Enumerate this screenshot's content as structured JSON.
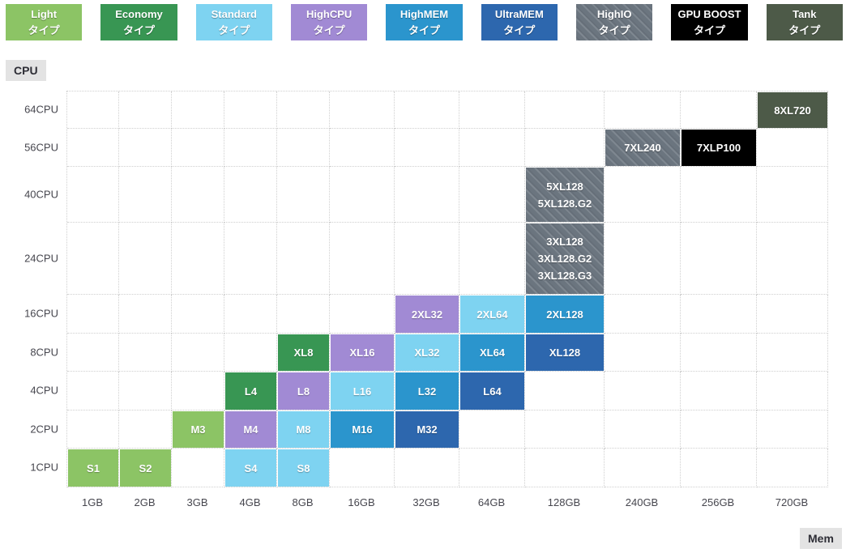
{
  "legend": {
    "items": [
      {
        "name": "Light",
        "sublabel": "タイプ",
        "color": "#8cc465",
        "striped": false
      },
      {
        "name": "Economy",
        "sublabel": "タイプ",
        "color": "#389653",
        "striped": false
      },
      {
        "name": "Standard",
        "sublabel": "タイプ",
        "color": "#7ed3f1",
        "striped": false
      },
      {
        "name": "HighCPU",
        "sublabel": "タイプ",
        "color": "#a18ad4",
        "striped": false
      },
      {
        "name": "HighMEM",
        "sublabel": "タイプ",
        "color": "#2b95cd",
        "striped": false
      },
      {
        "name": "UltraMEM",
        "sublabel": "タイプ",
        "color": "#2d67ae",
        "striped": false
      },
      {
        "name": "HighIO",
        "sublabel": "タイプ",
        "color": "#6b757f",
        "striped": true
      },
      {
        "name": "GPU BOOST",
        "sublabel": "タイプ",
        "color": "#000000",
        "striped": false
      },
      {
        "name": "Tank",
        "sublabel": "タイプ",
        "color": "#4d5a48",
        "striped": false
      }
    ]
  },
  "axes": {
    "y_badge": "CPU",
    "x_badge": "Mem"
  },
  "chart_data": {
    "type": "heatmap",
    "x_label": "Mem",
    "y_label": "CPU",
    "x_categories": [
      "1GB",
      "2GB",
      "3GB",
      "4GB",
      "8GB",
      "16GB",
      "32GB",
      "64GB",
      "128GB",
      "240GB",
      "256GB",
      "720GB"
    ],
    "y_categories": [
      "64CPU",
      "56CPU",
      "40CPU",
      "24CPU",
      "16CPU",
      "8CPU",
      "4CPU",
      "2CPU",
      "1CPU"
    ],
    "cells": [
      {
        "y": "1CPU",
        "x": "1GB",
        "labels": [
          "S1"
        ],
        "type": "Light"
      },
      {
        "y": "1CPU",
        "x": "2GB",
        "labels": [
          "S2"
        ],
        "type": "Light"
      },
      {
        "y": "1CPU",
        "x": "4GB",
        "labels": [
          "S4"
        ],
        "type": "Standard"
      },
      {
        "y": "1CPU",
        "x": "8GB",
        "labels": [
          "S8"
        ],
        "type": "Standard"
      },
      {
        "y": "2CPU",
        "x": "3GB",
        "labels": [
          "M3"
        ],
        "type": "Light"
      },
      {
        "y": "2CPU",
        "x": "4GB",
        "labels": [
          "M4"
        ],
        "type": "HighCPU"
      },
      {
        "y": "2CPU",
        "x": "8GB",
        "labels": [
          "M8"
        ],
        "type": "Standard"
      },
      {
        "y": "2CPU",
        "x": "16GB",
        "labels": [
          "M16"
        ],
        "type": "HighMEM"
      },
      {
        "y": "2CPU",
        "x": "32GB",
        "labels": [
          "M32"
        ],
        "type": "UltraMEM"
      },
      {
        "y": "4CPU",
        "x": "4GB",
        "labels": [
          "L4"
        ],
        "type": "Economy"
      },
      {
        "y": "4CPU",
        "x": "8GB",
        "labels": [
          "L8"
        ],
        "type": "HighCPU"
      },
      {
        "y": "4CPU",
        "x": "16GB",
        "labels": [
          "L16"
        ],
        "type": "Standard"
      },
      {
        "y": "4CPU",
        "x": "32GB",
        "labels": [
          "L32"
        ],
        "type": "HighMEM"
      },
      {
        "y": "4CPU",
        "x": "64GB",
        "labels": [
          "L64"
        ],
        "type": "UltraMEM"
      },
      {
        "y": "8CPU",
        "x": "8GB",
        "labels": [
          "XL8"
        ],
        "type": "Economy"
      },
      {
        "y": "8CPU",
        "x": "16GB",
        "labels": [
          "XL16"
        ],
        "type": "HighCPU"
      },
      {
        "y": "8CPU",
        "x": "32GB",
        "labels": [
          "XL32"
        ],
        "type": "Standard"
      },
      {
        "y": "8CPU",
        "x": "64GB",
        "labels": [
          "XL64"
        ],
        "type": "HighMEM"
      },
      {
        "y": "8CPU",
        "x": "128GB",
        "labels": [
          "XL128"
        ],
        "type": "UltraMEM"
      },
      {
        "y": "16CPU",
        "x": "32GB",
        "labels": [
          "2XL32"
        ],
        "type": "HighCPU"
      },
      {
        "y": "16CPU",
        "x": "64GB",
        "labels": [
          "2XL64"
        ],
        "type": "Standard"
      },
      {
        "y": "16CPU",
        "x": "128GB",
        "labels": [
          "2XL128"
        ],
        "type": "HighMEM"
      },
      {
        "y": "24CPU",
        "x": "128GB",
        "labels": [
          "3XL128",
          "3XL128.G2",
          "3XL128.G3"
        ],
        "type": "HighIO"
      },
      {
        "y": "40CPU",
        "x": "128GB",
        "labels": [
          "5XL128",
          "5XL128.G2"
        ],
        "type": "HighIO"
      },
      {
        "y": "56CPU",
        "x": "240GB",
        "labels": [
          "7XL240"
        ],
        "type": "HighIO"
      },
      {
        "y": "56CPU",
        "x": "256GB",
        "labels": [
          "7XLP100"
        ],
        "type": "GPU BOOST"
      },
      {
        "y": "64CPU",
        "x": "720GB",
        "labels": [
          "8XL720"
        ],
        "type": "Tank"
      }
    ]
  }
}
